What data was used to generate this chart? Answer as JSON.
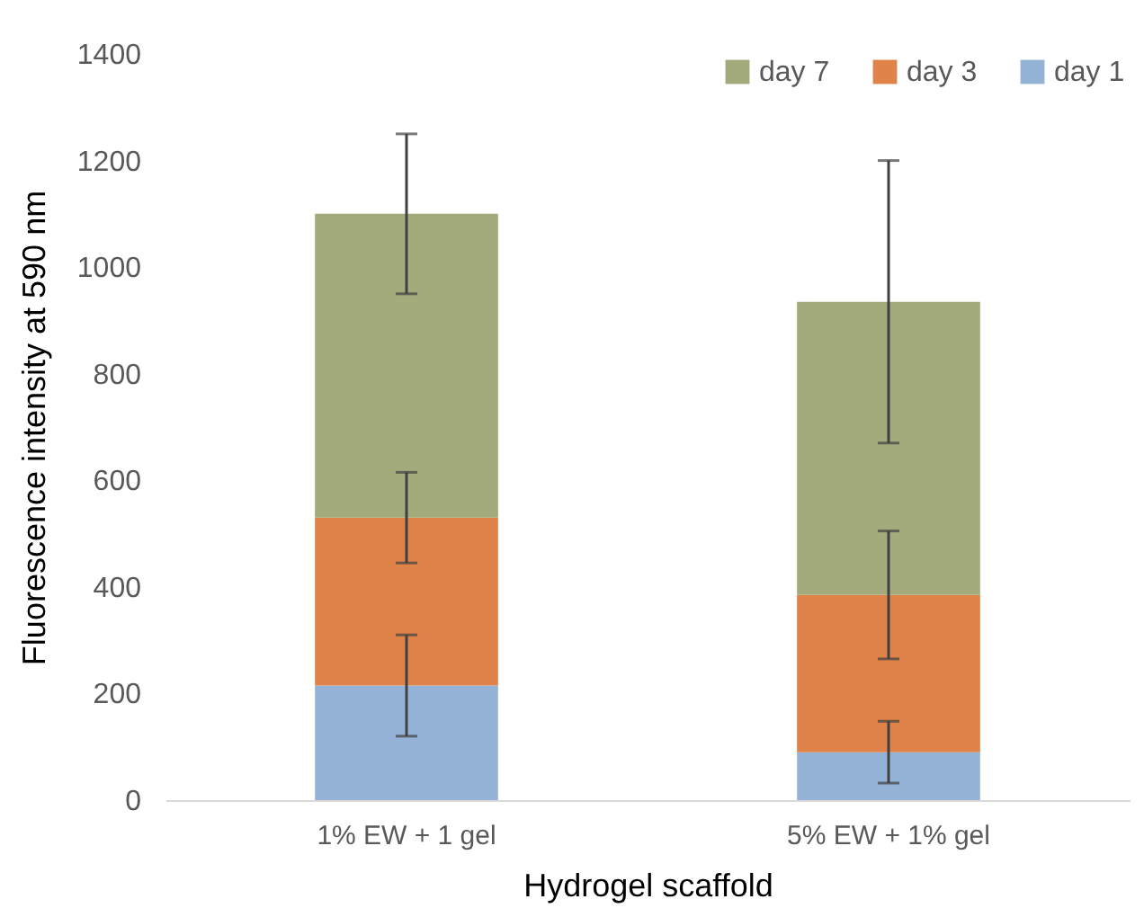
{
  "chart_data": {
    "type": "bar",
    "stacked": true,
    "xlabel": "Hydrogel scaffold",
    "ylabel": "Fluorescence intensity at 590 nm",
    "categories": [
      "1% EW + 1 gel",
      "5% EW + 1% gel"
    ],
    "series": [
      {
        "name": "day 1",
        "color": "#95b3d7",
        "values": [
          215,
          90
        ],
        "errors": [
          95,
          58
        ]
      },
      {
        "name": "day 3",
        "color": "#e0834a",
        "values": [
          315,
          295
        ],
        "errors": [
          85,
          120
        ]
      },
      {
        "name": "day 7",
        "color": "#a3ab7d",
        "values": [
          570,
          550
        ],
        "errors": [
          150,
          265
        ]
      }
    ],
    "ylim": [
      0,
      1400
    ],
    "yticks": [
      0,
      200,
      400,
      600,
      800,
      1000,
      1200,
      1400
    ],
    "grid": false,
    "legend": "top right"
  }
}
